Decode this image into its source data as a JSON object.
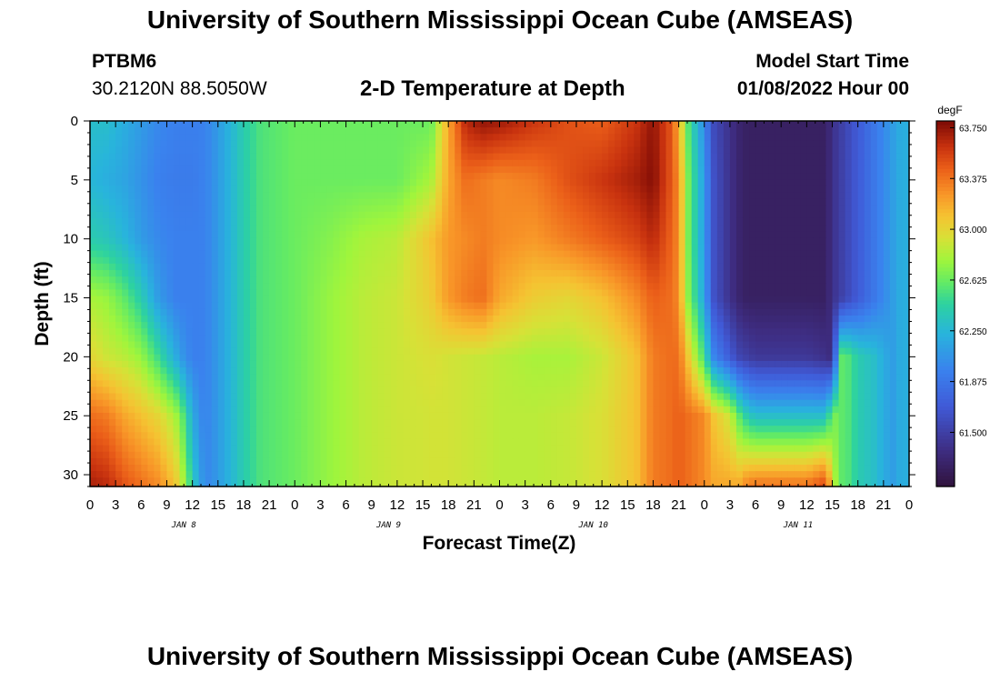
{
  "header": {
    "title": "University of Southern Mississippi Ocean Cube (AMSEAS)",
    "station_id": "PTBM6",
    "station_coords": "30.2120N  88.5050W",
    "subtitle": "2-D Temperature at Depth",
    "model_start_label": "Model Start Time",
    "model_start_value": "01/08/2022 Hour 00"
  },
  "footer": {
    "title": "University of Southern Mississippi Ocean Cube (AMSEAS)"
  },
  "chart_data": {
    "type": "heatmap",
    "title": "2-D Temperature at Depth",
    "xlabel": "Forecast Time(Z)",
    "ylabel": "Depth (ft)",
    "colorbar_unit": "degF",
    "x_range_hours": [
      0,
      96
    ],
    "y_range_ft": [
      0,
      31
    ],
    "x_tick_labels": [
      "0",
      "3",
      "6",
      "9",
      "12",
      "15",
      "18",
      "21",
      "0",
      "3",
      "6",
      "9",
      "12",
      "15",
      "18",
      "21",
      "0",
      "3",
      "6",
      "9",
      "12",
      "15",
      "18",
      "21",
      "0",
      "3",
      "6",
      "9",
      "12",
      "15",
      "18",
      "21",
      "0"
    ],
    "y_ticks": [
      0,
      5,
      10,
      15,
      20,
      25,
      30
    ],
    "day_labels": [
      "JAN 8",
      "JAN 9",
      "JAN 10",
      "JAN 11"
    ],
    "colorbar_ticks": [
      "63.750",
      "63.375",
      "63.000",
      "62.625",
      "62.250",
      "61.875",
      "61.500"
    ],
    "colorbar_range": [
      61.1,
      63.8
    ],
    "grid": false,
    "depth_rows_ft": [
      0,
      5,
      10,
      15,
      20,
      25,
      31
    ],
    "time_hours": [
      0,
      2,
      4,
      6,
      8,
      10,
      11,
      12,
      13,
      14,
      16,
      18,
      20,
      24,
      28,
      32,
      36,
      40,
      42,
      44,
      46,
      48,
      52,
      56,
      60,
      64,
      66,
      68,
      69,
      70,
      72,
      73,
      75,
      76,
      77,
      78,
      80,
      84,
      86,
      86.5,
      87,
      88,
      89,
      90,
      92,
      94,
      95,
      96
    ],
    "values_degF": [
      [
        62.3,
        62.3,
        62.2,
        62.1,
        62.0,
        61.95,
        61.95,
        61.95,
        61.95,
        62.0,
        62.2,
        62.4,
        62.55,
        62.63,
        62.63,
        62.63,
        62.63,
        62.63,
        63.2,
        63.65,
        63.75,
        63.72,
        63.6,
        63.5,
        63.45,
        63.6,
        63.75,
        63.5,
        63.2,
        62.6,
        62.0,
        61.6,
        61.4,
        61.3,
        61.25,
        61.25,
        61.25,
        61.25,
        61.25,
        61.3,
        61.4,
        61.5,
        61.6,
        61.7,
        61.9,
        62.1,
        62.2,
        62.2
      ],
      [
        62.25,
        62.2,
        62.15,
        62.05,
        61.95,
        61.92,
        61.92,
        61.92,
        61.95,
        62.0,
        62.2,
        62.4,
        62.55,
        62.63,
        62.63,
        62.63,
        62.63,
        62.8,
        63.2,
        63.4,
        63.35,
        63.3,
        63.35,
        63.5,
        63.6,
        63.7,
        63.78,
        63.5,
        63.3,
        62.7,
        62.1,
        61.65,
        61.4,
        61.3,
        61.25,
        61.25,
        61.25,
        61.25,
        61.25,
        61.3,
        61.4,
        61.5,
        61.6,
        61.7,
        61.9,
        62.1,
        62.2,
        62.2
      ],
      [
        62.4,
        62.35,
        62.25,
        62.1,
        62.0,
        61.95,
        61.95,
        61.95,
        61.95,
        62.0,
        62.2,
        62.4,
        62.55,
        62.63,
        62.7,
        62.8,
        62.85,
        63.1,
        63.25,
        63.3,
        63.35,
        63.3,
        63.25,
        63.35,
        63.45,
        63.55,
        63.65,
        63.45,
        63.3,
        62.7,
        62.1,
        61.65,
        61.4,
        61.3,
        61.25,
        61.25,
        61.25,
        61.25,
        61.25,
        61.3,
        61.4,
        61.5,
        61.6,
        61.7,
        61.9,
        62.1,
        62.2,
        62.2
      ],
      [
        62.8,
        62.75,
        62.6,
        62.4,
        62.1,
        61.95,
        61.95,
        61.95,
        61.95,
        62.0,
        62.2,
        62.4,
        62.55,
        62.63,
        62.75,
        62.85,
        62.9,
        63.05,
        63.25,
        63.35,
        63.4,
        63.2,
        63.05,
        63.0,
        63.1,
        63.3,
        63.45,
        63.4,
        63.3,
        62.75,
        62.15,
        61.65,
        61.4,
        61.3,
        61.25,
        61.25,
        61.25,
        61.25,
        61.25,
        61.3,
        61.4,
        61.5,
        61.6,
        61.7,
        61.9,
        62.1,
        62.2,
        62.2
      ],
      [
        63.0,
        62.9,
        62.85,
        62.75,
        62.5,
        62.2,
        62.05,
        61.95,
        61.95,
        62.0,
        62.2,
        62.4,
        62.55,
        62.63,
        62.75,
        62.85,
        62.9,
        62.95,
        62.92,
        62.9,
        62.88,
        62.85,
        62.8,
        62.8,
        62.9,
        63.1,
        63.35,
        63.4,
        63.4,
        63.1,
        62.5,
        62.0,
        61.7,
        61.55,
        61.5,
        61.45,
        61.45,
        61.45,
        61.4,
        61.35,
        61.4,
        62.6,
        62.55,
        62.4,
        62.3,
        62.1,
        62.2,
        62.2
      ],
      [
        63.4,
        63.35,
        63.2,
        63.1,
        63.0,
        62.8,
        62.55,
        62.2,
        62.0,
        62.0,
        62.2,
        62.4,
        62.55,
        62.63,
        62.75,
        62.85,
        62.9,
        62.92,
        62.92,
        62.9,
        62.88,
        62.85,
        62.85,
        62.88,
        62.95,
        63.1,
        63.35,
        63.4,
        63.45,
        63.4,
        63.3,
        63.1,
        62.9,
        62.6,
        62.4,
        62.3,
        62.3,
        62.3,
        62.3,
        62.4,
        62.7,
        62.6,
        62.55,
        62.4,
        62.3,
        62.1,
        62.2,
        62.2
      ],
      [
        63.7,
        63.65,
        63.5,
        63.4,
        63.3,
        63.1,
        62.8,
        62.4,
        62.1,
        62.0,
        62.2,
        62.4,
        62.55,
        62.63,
        62.75,
        62.85,
        62.9,
        62.92,
        62.92,
        62.9,
        62.88,
        62.85,
        62.85,
        62.88,
        62.95,
        63.1,
        63.35,
        63.4,
        63.45,
        63.4,
        63.3,
        63.2,
        63.2,
        63.2,
        63.35,
        63.4,
        63.4,
        63.4,
        63.55,
        63.4,
        62.9,
        62.6,
        62.55,
        62.4,
        62.3,
        62.1,
        62.2,
        62.2
      ]
    ]
  }
}
